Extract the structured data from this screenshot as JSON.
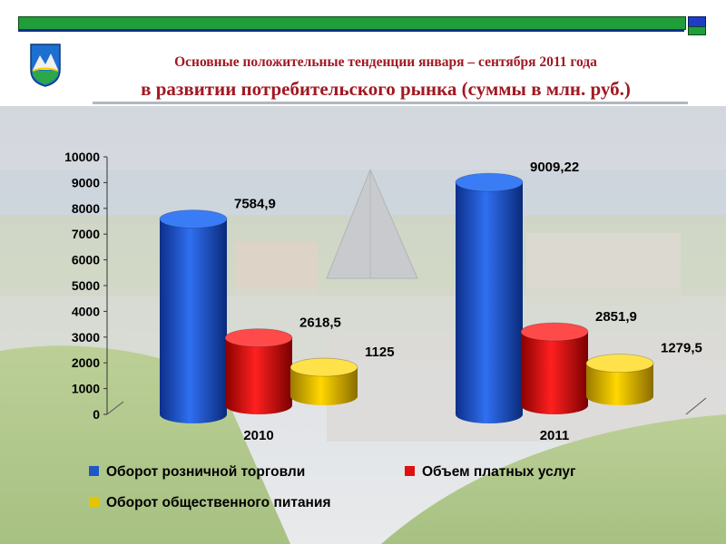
{
  "header": {
    "title_line1": "Основные положительные тенденции января – сентября 2011 года",
    "title_line2": "в развитии  потребительского рынка (суммы в млн. руб.)"
  },
  "icons": {
    "emblem": "city-coat-of-arms-icon"
  },
  "colors": {
    "title": "#a11822",
    "topbar_green": "#1f9e3a",
    "topbar_blue": "#1e3cc8",
    "series_retail": "#1f56c8",
    "series_paid_services": "#e01010",
    "series_catering": "#e6c400"
  },
  "chart_data": {
    "type": "bar",
    "categories": [
      "2010",
      "2011"
    ],
    "series": [
      {
        "name": "Оборот розничной торговли",
        "values": [
          7584.9,
          9009.22
        ],
        "labels": [
          "7584,9",
          "9009,22"
        ]
      },
      {
        "name": "Объем платных услуг",
        "values": [
          2618.5,
          2851.9
        ],
        "labels": [
          "2618,5",
          "2851,9"
        ]
      },
      {
        "name": "Оборот общественного питания",
        "values": [
          1125,
          1279.5
        ],
        "labels": [
          "1125",
          "1279,5"
        ]
      }
    ],
    "ylim": [
      0,
      10000
    ],
    "yticks": [
      "0",
      "1000",
      "2000",
      "3000",
      "4000",
      "5000",
      "6000",
      "7000",
      "8000",
      "9000",
      "10000"
    ],
    "grid": false,
    "legend_position": "bottom",
    "style": "3d-cylinder"
  }
}
